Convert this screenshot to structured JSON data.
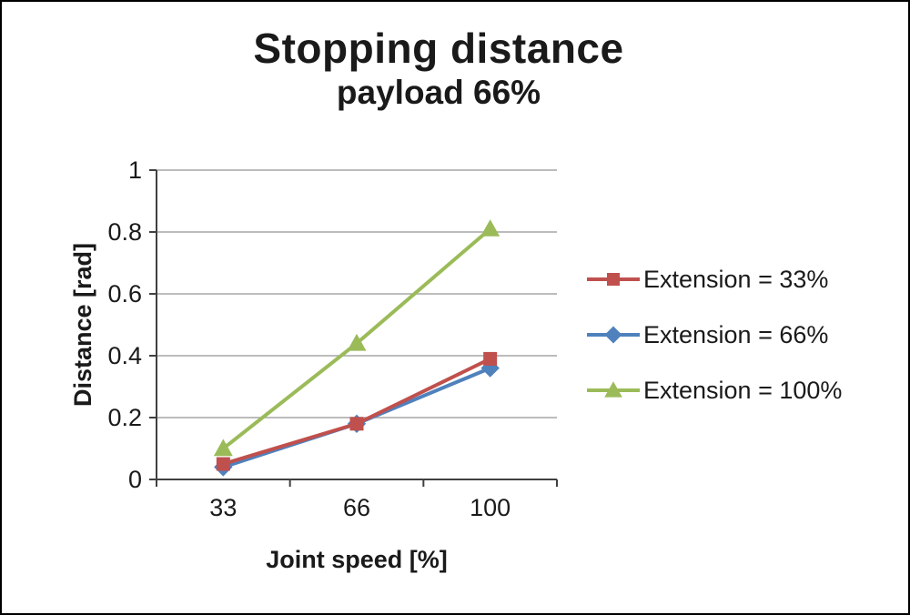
{
  "title": "Stopping distance",
  "subtitle": "payload 66%",
  "chart_data": {
    "type": "line",
    "categories": [
      "33",
      "66",
      "100"
    ],
    "series": [
      {
        "name": "Extension = 33%",
        "values": [
          0.05,
          0.18,
          0.39
        ],
        "color": "#C0504D",
        "marker": "square"
      },
      {
        "name": "Extension = 66%",
        "values": [
          0.04,
          0.18,
          0.36
        ],
        "color": "#4F81BD",
        "marker": "diamond"
      },
      {
        "name": "Extension = 100%",
        "values": [
          0.1,
          0.44,
          0.81
        ],
        "color": "#9BBB59",
        "marker": "triangle"
      }
    ],
    "xlabel": "Joint speed [%]",
    "ylabel": "Distance [rad]",
    "ylim": [
      0,
      1
    ],
    "yticks": [
      0,
      0.2,
      0.4,
      0.6,
      0.8,
      1
    ],
    "grid": true,
    "legend_position": "right",
    "colors": {
      "grid": "#a6a6a6",
      "axis": "#404040",
      "text": "#1a1a1a"
    }
  }
}
